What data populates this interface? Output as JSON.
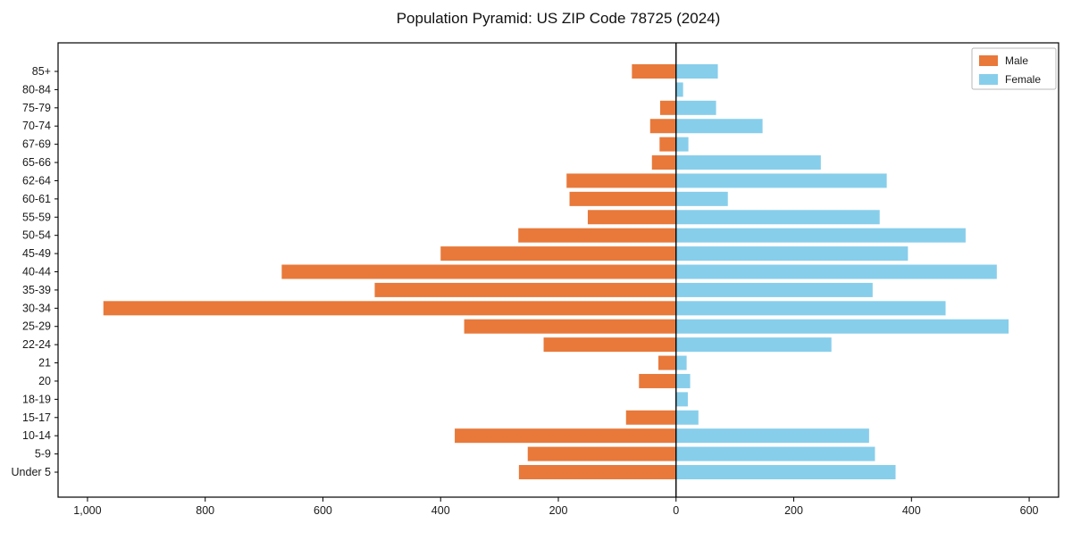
{
  "title": "Population Pyramid: US ZIP Code 78725 (2024)",
  "legend": {
    "male_label": "Male",
    "female_label": "Female"
  },
  "colors": {
    "male": "#e8793a",
    "female": "#87ceeb",
    "axis": "#000000",
    "legend_border": "#b8b8b8"
  },
  "chart_data": {
    "type": "bar",
    "subtype": "population-pyramid",
    "title": "Population Pyramid: US ZIP Code 78725 (2024)",
    "xlabel": "",
    "ylabel": "",
    "grid": false,
    "legend_position": "upper right",
    "categories_top_to_bottom": true,
    "categories": [
      "85+",
      "80-84",
      "75-79",
      "70-74",
      "67-69",
      "65-66",
      "62-64",
      "60-61",
      "55-59",
      "50-54",
      "45-49",
      "40-44",
      "35-39",
      "30-34",
      "25-29",
      "22-24",
      "21",
      "20",
      "18-19",
      "15-17",
      "10-14",
      "5-9",
      "Under 5"
    ],
    "series": [
      {
        "name": "Male",
        "values": [
          75,
          0,
          27,
          44,
          28,
          41,
          186,
          181,
          150,
          268,
          400,
          670,
          512,
          973,
          360,
          225,
          30,
          63,
          0,
          85,
          376,
          252,
          267
        ]
      },
      {
        "name": "Female",
        "values": [
          71,
          12,
          68,
          147,
          21,
          246,
          358,
          88,
          346,
          492,
          394,
          545,
          334,
          458,
          565,
          264,
          18,
          24,
          20,
          38,
          328,
          338,
          373
        ]
      }
    ],
    "x_tick_values": [
      -1000,
      -800,
      -600,
      -400,
      -200,
      0,
      200,
      400,
      600
    ],
    "x_tick_labels": [
      "1,000",
      "800",
      "600",
      "400",
      "200",
      "0",
      "200",
      "400",
      "600"
    ],
    "xlim": [
      -1050,
      650
    ]
  }
}
